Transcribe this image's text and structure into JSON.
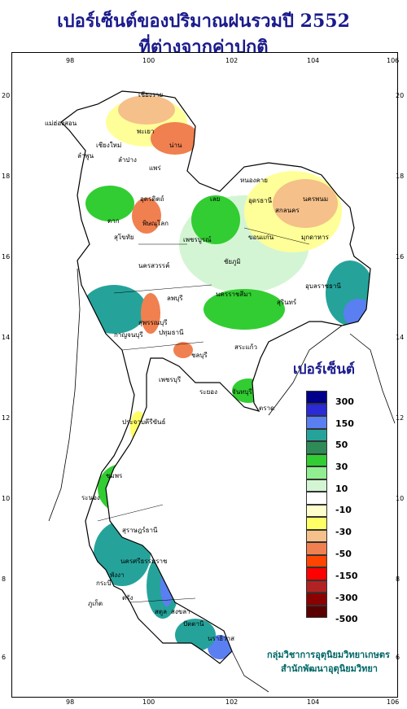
{
  "title_line1": "เปอร์เซ็นต์ของปริมาณฝนรวมปี 2552",
  "title_line2": "ที่ต่างจากค่าปกติ",
  "longitudes": [
    "98",
    "100",
    "102",
    "104",
    "106"
  ],
  "latitudes": [
    "20",
    "18",
    "16",
    "14",
    "12",
    "10",
    "8",
    "6"
  ],
  "legend": {
    "title": "เปอร์เซ็นต์",
    "colors": [
      "#00008b",
      "#2a2ad9",
      "#5a7ff0",
      "#25a39a",
      "#2e8b57",
      "#32cd32",
      "#90ee90",
      "#d4f5d4",
      "#ffffff",
      "#ffffcc",
      "#ffff66",
      "#f5c08a",
      "#f08050",
      "#ff4500",
      "#ff0000",
      "#b22222",
      "#8b0000",
      "#5a0000"
    ],
    "labels": [
      "300",
      "150",
      "50",
      "30",
      "10",
      "-10",
      "-30",
      "-50",
      "-150",
      "-300",
      "-500"
    ]
  },
  "credit": {
    "line1": "กลุ่มวิชาการอุตุนิยมวิทยาเกษตร",
    "line2": "สำนักพัฒนาอุตุนิยมวิทยา"
  },
  "provinces": [
    "เชียงราย",
    "แม่ฮ่องสอน",
    "เชียงใหม่",
    "ลำพูน",
    "ลำปาง",
    "พะเยา",
    "น่าน",
    "แพร่",
    "อุตรดิตถ์",
    "ตาก",
    "สุโขทัย",
    "พิษณุโลก",
    "เพชรบูรณ์",
    "เลย",
    "หนองคาย",
    "อุดรธานี",
    "สกลนคร",
    "นครพนม",
    "มุกดาหาร",
    "ขอนแก่น",
    "ชัยภูมิ",
    "นครราชสีมา",
    "อุบลราชธานี",
    "สุรินทร์",
    "นครสวรรค์",
    "ลพบุรี",
    "สุพรรณบุรี",
    "กาญจนบุรี",
    "ปทุมธานี",
    "สระแก้ว",
    "ชลบุรี",
    "ระยอง",
    "จันทบุรี",
    "ตราด",
    "เพชรบุรี",
    "ประจวบคีรีขันธ์",
    "ชุมพร",
    "ระนอง",
    "สุราษฎร์ธานี",
    "นครศรีธรรมราช",
    "กระบี่",
    "ภูเก็ต",
    "พังงา",
    "ตรัง",
    "สตูล",
    "สงขลา",
    "ปัตตานี",
    "นราธิวาส"
  ]
}
